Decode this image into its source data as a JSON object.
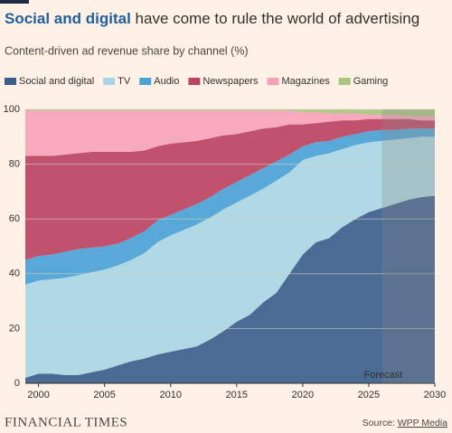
{
  "chart_data": {
    "type": "stacked-area",
    "title_highlight": "Social and digital",
    "title": "have come to rule the world of advertising",
    "subtitle": "Content-driven ad revenue share by channel (%)",
    "x": [
      1999,
      2000,
      2001,
      2002,
      2003,
      2004,
      2005,
      2006,
      2007,
      2008,
      2009,
      2010,
      2011,
      2012,
      2013,
      2014,
      2015,
      2016,
      2017,
      2018,
      2019,
      2020,
      2021,
      2022,
      2023,
      2024,
      2025,
      2026,
      2027,
      2028,
      2029,
      2030
    ],
    "xlim": [
      1999,
      2030
    ],
    "xticks": [
      2000,
      2005,
      2010,
      2015,
      2020,
      2025,
      2030
    ],
    "ylim": [
      0,
      100
    ],
    "yticks": [
      0,
      20,
      40,
      60,
      80,
      100
    ],
    "grid": true,
    "legend": "top",
    "series": [
      {
        "name": "Social and digital",
        "color": "#3b5f8c",
        "values": [
          2,
          3.5,
          3.5,
          3,
          3,
          4,
          5,
          6.5,
          8,
          9,
          10.5,
          11.5,
          12.5,
          13.5,
          16,
          19,
          22.5,
          25,
          29.5,
          33,
          40,
          47,
          51.5,
          53,
          57,
          60,
          62.5,
          64,
          65.5,
          67,
          68,
          68.5
        ]
      },
      {
        "name": "TV",
        "color": "#a9d6e5",
        "values": [
          34,
          34,
          34.5,
          35.5,
          36.5,
          36.5,
          36.5,
          36.5,
          37,
          38.5,
          41,
          42.5,
          43.5,
          44.5,
          44.5,
          44.5,
          43.5,
          43.5,
          41.5,
          41,
          37,
          34.5,
          31.5,
          31,
          28.5,
          27,
          25.5,
          24.5,
          23.5,
          22.5,
          22,
          21.5
        ]
      },
      {
        "name": "Audio",
        "color": "#4aa3d6",
        "values": [
          9,
          9,
          9,
          9.5,
          9.5,
          9,
          8.5,
          8,
          8,
          8,
          8,
          7.5,
          7.5,
          7.5,
          7.5,
          7.5,
          7.5,
          7.5,
          7.5,
          7,
          6.5,
          5,
          5,
          4.5,
          4.5,
          4,
          4,
          4,
          3.5,
          3.5,
          3,
          3
        ]
      },
      {
        "name": "Newspapers",
        "color": "#bb4463",
        "values": [
          38,
          36.5,
          36,
          35.5,
          35,
          35,
          34.5,
          33.5,
          31.5,
          29.5,
          27,
          26,
          24.5,
          23,
          21.5,
          19.5,
          17.5,
          16,
          14.5,
          12.5,
          11,
          8,
          7,
          7,
          6,
          5,
          4.5,
          4,
          4,
          3.5,
          3,
          3
        ]
      },
      {
        "name": "Magazines",
        "color": "#f6a3ba",
        "values": [
          16.5,
          16.5,
          16.5,
          16,
          15.5,
          15,
          15,
          15,
          15,
          14.5,
          13,
          12,
          11.5,
          11,
          10,
          9,
          8.5,
          7.5,
          6.5,
          6,
          5,
          4.5,
          4,
          3,
          2.5,
          2.5,
          1.5,
          1.5,
          1.5,
          1,
          1.5,
          1.5
        ]
      },
      {
        "name": "Gaming",
        "color": "#a9c77f",
        "values": [
          0.5,
          0.5,
          0.5,
          0.5,
          0.5,
          0.5,
          0.5,
          0.5,
          0.5,
          0.5,
          0.5,
          0.5,
          0.5,
          0.5,
          0.5,
          0.5,
          0.5,
          0.5,
          0.5,
          0.5,
          0.5,
          1,
          1,
          1.5,
          1.5,
          1.5,
          2,
          2,
          2,
          2.5,
          2.5,
          2.5
        ]
      }
    ],
    "annotations": [
      {
        "text": "Forecast",
        "x": 2026
      }
    ],
    "footer": "FINANCIAL TIMES",
    "source_label": "Source:",
    "source": "WPP Media"
  }
}
